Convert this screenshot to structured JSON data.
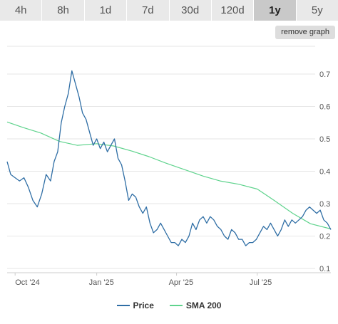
{
  "tabs": [
    {
      "label": "4h",
      "active": false
    },
    {
      "label": "8h",
      "active": false
    },
    {
      "label": "1d",
      "active": false
    },
    {
      "label": "7d",
      "active": false
    },
    {
      "label": "30d",
      "active": false
    },
    {
      "label": "120d",
      "active": false
    },
    {
      "label": "1y",
      "active": true
    },
    {
      "label": "5y",
      "active": false
    }
  ],
  "remove_graph_label": "remove graph",
  "colors": {
    "price": "#2f6ea5",
    "sma": "#5fd38d",
    "grid": "#e6e6e6",
    "axis": "#cccccc"
  },
  "chart_data": {
    "type": "line",
    "title": "",
    "xlabel": "",
    "ylabel": "",
    "x_ticks": [
      "Oct '24",
      "Jan '25",
      "Apr '25",
      "Jul '25"
    ],
    "y_ticks": [
      0.1,
      0.2,
      0.3,
      0.4,
      0.5,
      0.6,
      0.7
    ],
    "ylim": [
      0.1,
      0.75
    ],
    "grid": true,
    "legend_position": "bottom-center",
    "series": [
      {
        "name": "Price",
        "x": [
          "2024-09-22",
          "2024-09-26",
          "2024-10-01",
          "2024-10-06",
          "2024-10-11",
          "2024-10-16",
          "2024-10-21",
          "2024-10-26",
          "2024-10-31",
          "2024-11-05",
          "2024-11-10",
          "2024-11-14",
          "2024-11-18",
          "2024-11-22",
          "2024-11-26",
          "2024-11-30",
          "2024-12-04",
          "2024-12-08",
          "2024-12-12",
          "2024-12-16",
          "2024-12-20",
          "2024-12-24",
          "2024-12-28",
          "2025-01-01",
          "2025-01-05",
          "2025-01-09",
          "2025-01-13",
          "2025-01-17",
          "2025-01-21",
          "2025-01-25",
          "2025-01-29",
          "2025-02-02",
          "2025-02-06",
          "2025-02-10",
          "2025-02-14",
          "2025-02-18",
          "2025-02-22",
          "2025-02-26",
          "2025-03-02",
          "2025-03-06",
          "2025-03-10",
          "2025-03-14",
          "2025-03-18",
          "2025-03-22",
          "2025-03-26",
          "2025-03-30",
          "2025-04-03",
          "2025-04-07",
          "2025-04-11",
          "2025-04-15",
          "2025-04-19",
          "2025-04-23",
          "2025-04-27",
          "2025-05-01",
          "2025-05-05",
          "2025-05-09",
          "2025-05-13",
          "2025-05-17",
          "2025-05-21",
          "2025-05-25",
          "2025-05-29",
          "2025-06-02",
          "2025-06-06",
          "2025-06-10",
          "2025-06-14",
          "2025-06-18",
          "2025-06-22",
          "2025-06-26",
          "2025-06-30",
          "2025-07-04",
          "2025-07-08",
          "2025-07-12",
          "2025-07-16",
          "2025-07-20",
          "2025-07-24",
          "2025-07-28",
          "2025-08-01",
          "2025-08-05",
          "2025-08-09",
          "2025-08-13",
          "2025-08-17",
          "2025-08-21",
          "2025-08-25",
          "2025-08-29",
          "2025-09-02",
          "2025-09-06",
          "2025-09-10",
          "2025-09-14",
          "2025-09-18",
          "2025-09-22"
        ],
        "values": [
          0.43,
          0.39,
          0.38,
          0.37,
          0.38,
          0.35,
          0.31,
          0.29,
          0.33,
          0.39,
          0.37,
          0.43,
          0.46,
          0.55,
          0.6,
          0.64,
          0.71,
          0.67,
          0.63,
          0.58,
          0.56,
          0.52,
          0.48,
          0.5,
          0.47,
          0.49,
          0.46,
          0.48,
          0.5,
          0.44,
          0.42,
          0.37,
          0.31,
          0.33,
          0.32,
          0.29,
          0.27,
          0.29,
          0.24,
          0.21,
          0.22,
          0.24,
          0.22,
          0.2,
          0.18,
          0.18,
          0.17,
          0.19,
          0.18,
          0.2,
          0.24,
          0.22,
          0.25,
          0.26,
          0.24,
          0.26,
          0.25,
          0.23,
          0.22,
          0.2,
          0.19,
          0.22,
          0.21,
          0.19,
          0.19,
          0.17,
          0.18,
          0.18,
          0.19,
          0.21,
          0.23,
          0.22,
          0.24,
          0.22,
          0.2,
          0.22,
          0.25,
          0.23,
          0.25,
          0.24,
          0.25,
          0.26,
          0.28,
          0.29,
          0.28,
          0.27,
          0.28,
          0.25,
          0.24,
          0.22
        ]
      },
      {
        "name": "SMA 200",
        "x": [
          "2024-09-22",
          "2024-10-10",
          "2024-10-30",
          "2024-11-20",
          "2024-12-10",
          "2025-01-01",
          "2025-01-20",
          "2025-02-10",
          "2025-03-01",
          "2025-03-20",
          "2025-04-10",
          "2025-05-01",
          "2025-05-20",
          "2025-06-10",
          "2025-07-01",
          "2025-07-20",
          "2025-08-10",
          "2025-08-30",
          "2025-09-22"
        ],
        "values": [
          0.552,
          0.535,
          0.518,
          0.492,
          0.48,
          0.485,
          0.478,
          0.462,
          0.445,
          0.425,
          0.405,
          0.385,
          0.37,
          0.36,
          0.345,
          0.31,
          0.27,
          0.238,
          0.222
        ]
      }
    ]
  },
  "legend": [
    {
      "label": "Price"
    },
    {
      "label": "SMA 200"
    }
  ]
}
